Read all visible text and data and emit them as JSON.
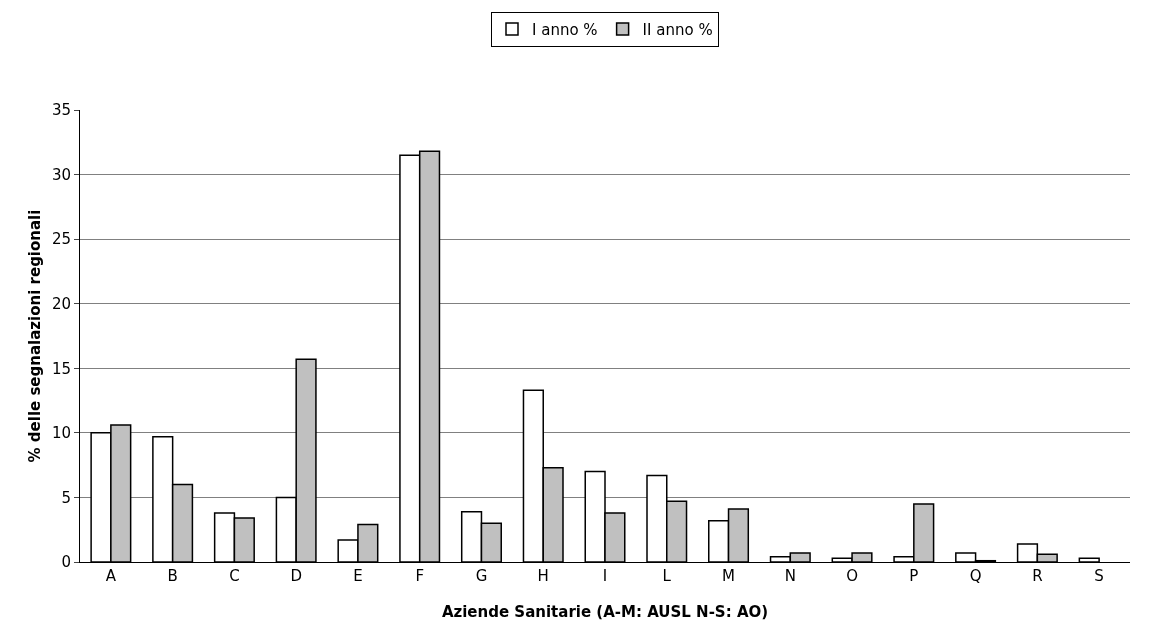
{
  "chart_data": {
    "type": "bar",
    "xlabel": "Aziende Sanitarie (A-M: AUSL N-S: AO)",
    "ylabel": "% delle segnalazioni regionali",
    "categories": [
      "A",
      "B",
      "C",
      "D",
      "E",
      "F",
      "G",
      "H",
      "I",
      "L",
      "M",
      "N",
      "O",
      "P",
      "Q",
      "R",
      "S"
    ],
    "series": [
      {
        "name": "I anno %",
        "color": "#ffffff",
        "values": [
          10.0,
          9.7,
          3.8,
          5.0,
          1.7,
          31.5,
          3.9,
          13.3,
          7.0,
          6.7,
          3.2,
          0.4,
          0.3,
          0.4,
          0.7,
          1.4,
          0.3
        ]
      },
      {
        "name": "II anno %",
        "color": "#c0c0c0",
        "values": [
          10.6,
          6.0,
          3.4,
          15.7,
          2.9,
          31.8,
          3.0,
          7.3,
          3.8,
          4.7,
          4.1,
          0.7,
          0.7,
          4.5,
          0.1,
          0.6,
          null
        ]
      }
    ],
    "ylim": [
      0,
      35
    ],
    "yticks": [
      0,
      5,
      10,
      15,
      20,
      25,
      30,
      35
    ],
    "grid": "y",
    "legend": "top"
  }
}
